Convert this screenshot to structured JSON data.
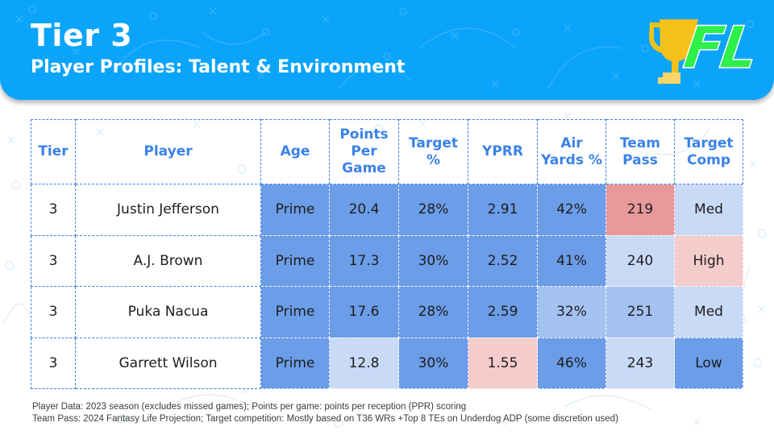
{
  "header": {
    "title": "Tier 3",
    "subtitle": "Player Profiles: Talent & Environment",
    "logo_text": "FL",
    "logo_icon": "trophy-icon",
    "colors": {
      "banner": "#0aa4fb",
      "logo_green": "#2ef04a",
      "trophy_gold": "#f5c118"
    }
  },
  "table": {
    "columns": [
      {
        "key": "tier",
        "label": "Tier"
      },
      {
        "key": "player",
        "label": "Player"
      },
      {
        "key": "age",
        "label": "Age"
      },
      {
        "key": "ppg",
        "label": "Points Per Game"
      },
      {
        "key": "target_pct",
        "label": "Target %"
      },
      {
        "key": "yprr",
        "label": "YPRR"
      },
      {
        "key": "air_yards_pct",
        "label": "Air Yards %"
      },
      {
        "key": "team_pass",
        "label": "Team Pass"
      },
      {
        "key": "target_comp",
        "label": "Target Comp"
      }
    ],
    "rows": [
      {
        "tier": "3",
        "player": "Justin Jefferson",
        "age": "Prime",
        "ppg": "20.4",
        "target_pct": "28%",
        "yprr": "2.91",
        "air_yards_pct": "42%",
        "team_pass": "219",
        "target_comp": "Med"
      },
      {
        "tier": "3",
        "player": "A.J. Brown",
        "age": "Prime",
        "ppg": "17.3",
        "target_pct": "30%",
        "yprr": "2.52",
        "air_yards_pct": "41%",
        "team_pass": "240",
        "target_comp": "High"
      },
      {
        "tier": "3",
        "player": "Puka Nacua",
        "age": "Prime",
        "ppg": "17.6",
        "target_pct": "28%",
        "yprr": "2.59",
        "air_yards_pct": "32%",
        "team_pass": "251",
        "target_comp": "Med"
      },
      {
        "tier": "3",
        "player": "Garrett Wilson",
        "age": "Prime",
        "ppg": "12.8",
        "target_pct": "30%",
        "yprr": "1.55",
        "air_yards_pct": "46%",
        "team_pass": "243",
        "target_comp": "Low"
      }
    ],
    "cell_shading": [
      [
        "white",
        "white",
        "dark",
        "dark",
        "dark",
        "dark",
        "dark",
        "red",
        "light"
      ],
      [
        "white",
        "white",
        "dark",
        "dark",
        "dark",
        "dark",
        "dark",
        "light",
        "pink"
      ],
      [
        "white",
        "white",
        "dark",
        "dark",
        "dark",
        "dark",
        "mid",
        "mid",
        "light"
      ],
      [
        "white",
        "white",
        "dark",
        "light",
        "dark",
        "pink",
        "dark",
        "light",
        "dark"
      ]
    ],
    "shade_colors": {
      "dark": "#6b9de8",
      "mid": "#a4c2f1",
      "light": "#c9daf6",
      "red": "#e89a9a",
      "pink": "#f5cccc",
      "header_text": "#3b82e8"
    }
  },
  "footer": {
    "line1": "Player Data: 2023 season (excludes missed games); Points per game: points per reception (PPR) scoring",
    "line2": "Team Pass: 2024 Fantasy Life Projection; Target competition: Mostly based on T36 WRs +Top 8 TEs on Underdog ADP (some discretion used)"
  }
}
